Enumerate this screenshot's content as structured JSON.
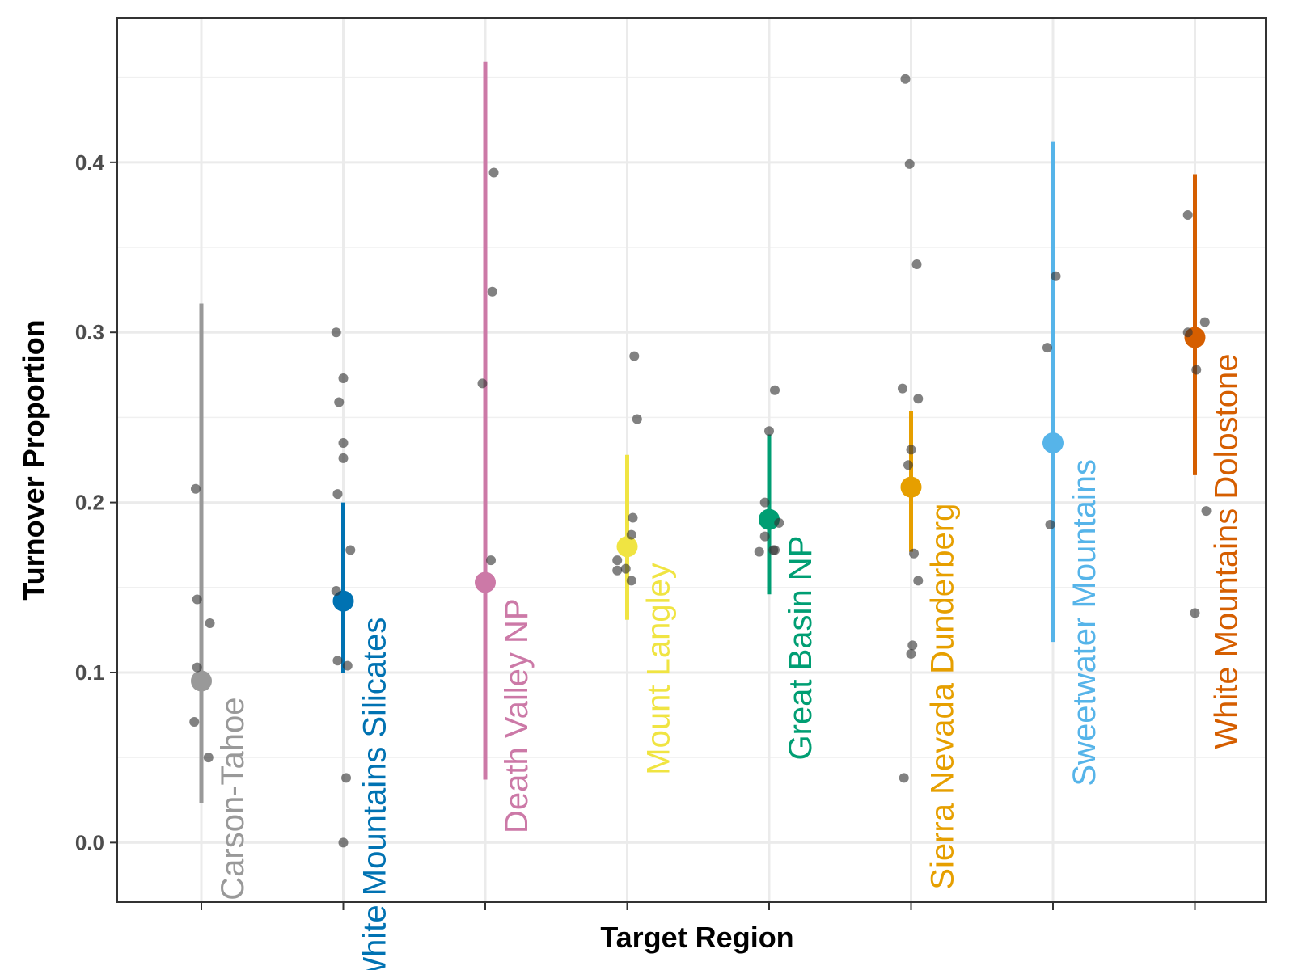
{
  "chart_data": {
    "type": "scatter",
    "title": "",
    "xlabel": "Target Region",
    "ylabel": "Turnover Proportion",
    "ylim": [
      -0.035,
      0.485
    ],
    "y_ticks": [
      "0.0",
      "0.1",
      "0.2",
      "0.3",
      "0.4"
    ],
    "y_tick_values": [
      0.0,
      0.1,
      0.2,
      0.3,
      0.4
    ],
    "grid": true,
    "legend": "none",
    "categories": [
      "Carson-Tahoe",
      "White Mountains Silicates",
      "Death Valley NP",
      "Mount Langley",
      "Great Basin NP",
      "Sierra Nevada Dunderberg",
      "Sweetwater Mountains",
      "White Mountains Dolostone"
    ],
    "colors": [
      "#999999",
      "#0072B2",
      "#CC79A7",
      "#F0E442",
      "#009E73",
      "#E69F00",
      "#56B4E9",
      "#D55E00"
    ],
    "point_color": "#333333",
    "series": [
      {
        "name": "Carson-Tahoe",
        "mean": 0.095,
        "lower": 0.023,
        "upper": 0.317,
        "points": [
          {
            "x_offset": -0.04,
            "y": 0.208
          },
          {
            "x_offset": -0.03,
            "y": 0.143
          },
          {
            "x_offset": 0.06,
            "y": 0.129
          },
          {
            "x_offset": -0.03,
            "y": 0.103
          },
          {
            "x_offset": -0.05,
            "y": 0.071
          },
          {
            "x_offset": 0.05,
            "y": 0.05
          }
        ]
      },
      {
        "name": "White Mountains Silicates",
        "mean": 0.142,
        "lower": 0.1,
        "upper": 0.2,
        "points": [
          {
            "x_offset": -0.05,
            "y": 0.3
          },
          {
            "x_offset": 0.0,
            "y": 0.273
          },
          {
            "x_offset": -0.03,
            "y": 0.259
          },
          {
            "x_offset": 0.0,
            "y": 0.235
          },
          {
            "x_offset": 0.0,
            "y": 0.226
          },
          {
            "x_offset": -0.04,
            "y": 0.205
          },
          {
            "x_offset": 0.05,
            "y": 0.172
          },
          {
            "x_offset": -0.05,
            "y": 0.148
          },
          {
            "x_offset": -0.04,
            "y": 0.107
          },
          {
            "x_offset": 0.03,
            "y": 0.104
          },
          {
            "x_offset": 0.02,
            "y": 0.038
          },
          {
            "x_offset": 0.0,
            "y": 0.0
          }
        ]
      },
      {
        "name": "Death Valley NP",
        "mean": 0.153,
        "lower": 0.037,
        "upper": 0.459,
        "points": [
          {
            "x_offset": 0.06,
            "y": 0.394
          },
          {
            "x_offset": 0.05,
            "y": 0.324
          },
          {
            "x_offset": -0.02,
            "y": 0.27
          },
          {
            "x_offset": 0.04,
            "y": 0.166
          }
        ]
      },
      {
        "name": "Mount Langley",
        "mean": 0.174,
        "lower": 0.131,
        "upper": 0.228,
        "points": [
          {
            "x_offset": 0.05,
            "y": 0.286
          },
          {
            "x_offset": 0.07,
            "y": 0.249
          },
          {
            "x_offset": 0.04,
            "y": 0.191
          },
          {
            "x_offset": 0.03,
            "y": 0.181
          },
          {
            "x_offset": -0.07,
            "y": 0.166
          },
          {
            "x_offset": -0.07,
            "y": 0.16
          },
          {
            "x_offset": -0.01,
            "y": 0.161
          },
          {
            "x_offset": 0.03,
            "y": 0.154
          }
        ]
      },
      {
        "name": "Great Basin NP",
        "mean": 0.19,
        "lower": 0.146,
        "upper": 0.24,
        "points": [
          {
            "x_offset": 0.04,
            "y": 0.266
          },
          {
            "x_offset": 0.0,
            "y": 0.242
          },
          {
            "x_offset": -0.03,
            "y": 0.2
          },
          {
            "x_offset": 0.07,
            "y": 0.188
          },
          {
            "x_offset": -0.03,
            "y": 0.18
          },
          {
            "x_offset": 0.03,
            "y": 0.172
          },
          {
            "x_offset": 0.04,
            "y": 0.172
          },
          {
            "x_offset": -0.07,
            "y": 0.171
          }
        ]
      },
      {
        "name": "Sierra Nevada Dunderberg",
        "mean": 0.209,
        "lower": 0.171,
        "upper": 0.254,
        "points": [
          {
            "x_offset": -0.04,
            "y": 0.449
          },
          {
            "x_offset": -0.01,
            "y": 0.399
          },
          {
            "x_offset": 0.04,
            "y": 0.34
          },
          {
            "x_offset": -0.06,
            "y": 0.267
          },
          {
            "x_offset": 0.05,
            "y": 0.261
          },
          {
            "x_offset": 0.0,
            "y": 0.231
          },
          {
            "x_offset": -0.02,
            "y": 0.222
          },
          {
            "x_offset": 0.02,
            "y": 0.17
          },
          {
            "x_offset": 0.05,
            "y": 0.154
          },
          {
            "x_offset": 0.01,
            "y": 0.116
          },
          {
            "x_offset": 0.0,
            "y": 0.111
          },
          {
            "x_offset": -0.05,
            "y": 0.038
          }
        ]
      },
      {
        "name": "Sweetwater Mountains",
        "mean": 0.235,
        "lower": 0.118,
        "upper": 0.412,
        "points": [
          {
            "x_offset": 0.02,
            "y": 0.333
          },
          {
            "x_offset": -0.04,
            "y": 0.291
          },
          {
            "x_offset": -0.02,
            "y": 0.187
          }
        ]
      },
      {
        "name": "White Mountains Dolostone",
        "mean": 0.297,
        "lower": 0.216,
        "upper": 0.393,
        "points": [
          {
            "x_offset": -0.05,
            "y": 0.369
          },
          {
            "x_offset": 0.07,
            "y": 0.306
          },
          {
            "x_offset": -0.05,
            "y": 0.3
          },
          {
            "x_offset": 0.01,
            "y": 0.278
          },
          {
            "x_offset": 0.08,
            "y": 0.195
          },
          {
            "x_offset": 0.0,
            "y": 0.135
          }
        ]
      }
    ]
  }
}
